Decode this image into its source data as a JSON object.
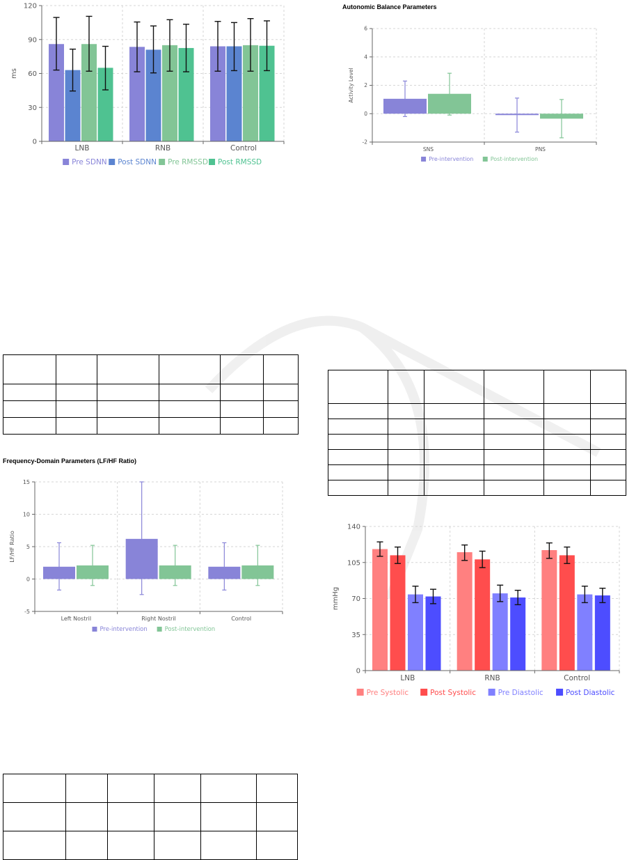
{
  "charts": {
    "hrv": {
      "ylabel": "ms",
      "yticks": [
        0,
        30,
        60,
        90,
        120
      ],
      "ylim": [
        0,
        120
      ],
      "categories": [
        "LNB",
        "RNB",
        "Control"
      ],
      "legend": [
        "Pre SDNN",
        "Post SDNN",
        "Pre RMSSD",
        "Post RMSSD"
      ]
    },
    "autonomic": {
      "title": "Autonomic Balance Parameters",
      "ylabel": "Activity Level",
      "yticks": [
        -2,
        0,
        2,
        4,
        6
      ],
      "ylim": [
        -2,
        6
      ],
      "categories": [
        "SNS",
        "PNS"
      ],
      "legend": [
        "Pre-intervention",
        "Post-intervention"
      ]
    },
    "lfhf": {
      "title": "Frequency-Domain Parameters (LF/HF Ratio)",
      "ylabel": "LF/HF Ratio",
      "yticks": [
        -5,
        0,
        5,
        10,
        15
      ],
      "ylim": [
        -5,
        15
      ],
      "categories": [
        "Left Nostril",
        "Right Nostril",
        "Control"
      ],
      "legend": [
        "Pre-intervention",
        "Post-intervention"
      ]
    },
    "bp": {
      "ylabel": "mmHg",
      "yticks": [
        0,
        35,
        70,
        105,
        140
      ],
      "ylim": [
        0,
        140
      ],
      "categories": [
        "LNB",
        "RNB",
        "Control"
      ],
      "legend": [
        "Pre Systolic",
        "Post Systolic",
        "Pre Diastolic",
        "Post Diastolic"
      ]
    }
  },
  "chart_data": [
    {
      "type": "bar",
      "ylabel": "ms",
      "ylim": [
        0,
        120
      ],
      "grid": true,
      "legend_position": "bottom",
      "categories": [
        "LNB",
        "RNB",
        "Control"
      ],
      "series": [
        {
          "name": "Pre SDNN",
          "color": "#8884d8",
          "values": [
            86,
            83.5,
            84
          ],
          "error_low": [
            63,
            61.5,
            62
          ],
          "error_high": [
            109.5,
            105.5,
            106
          ]
        },
        {
          "name": "Post SDNN",
          "color": "#5b84d0",
          "values": [
            63,
            81,
            84
          ],
          "error_low": [
            44.5,
            60.5,
            62.5
          ],
          "error_high": [
            81.5,
            102,
            105
          ]
        },
        {
          "name": "Pre RMSSD",
          "color": "#82c596",
          "values": [
            86,
            85,
            85
          ],
          "error_low": [
            62,
            62,
            62
          ],
          "error_high": [
            110.5,
            107.5,
            108.5
          ]
        },
        {
          "name": "Post RMSSD",
          "color": "#4fc291",
          "values": [
            65,
            82.5,
            84.5
          ],
          "error_low": [
            45.5,
            61.5,
            62.5
          ],
          "error_high": [
            84,
            103.5,
            106.5
          ]
        }
      ]
    },
    {
      "type": "bar",
      "title": "Autonomic Balance Parameters",
      "ylabel": "Activity Level",
      "ylim": [
        -2,
        6
      ],
      "grid": true,
      "legend_position": "bottom",
      "categories": [
        "SNS",
        "PNS"
      ],
      "series": [
        {
          "name": "Pre-intervention",
          "color": "#8884d8",
          "values": [
            1.05,
            -0.1
          ],
          "error_low": [
            -0.2,
            -1.3
          ],
          "error_high": [
            2.3,
            1.1
          ]
        },
        {
          "name": "Post-intervention",
          "color": "#82c596",
          "values": [
            1.4,
            -0.35
          ],
          "error_low": [
            -0.1,
            -1.7
          ],
          "error_high": [
            2.85,
            1.0
          ]
        }
      ]
    },
    {
      "type": "bar",
      "title": "Frequency-Domain Parameters (LF/HF Ratio)",
      "ylabel": "LF/HF Ratio",
      "ylim": [
        -5,
        15
      ],
      "grid": true,
      "legend_position": "bottom",
      "categories": [
        "Left Nostril",
        "Right Nostril",
        "Control"
      ],
      "series": [
        {
          "name": "Pre-intervention",
          "color": "#8884d8",
          "values": [
            1.9,
            6.2,
            1.9
          ],
          "error_low": [
            -1.7,
            -2.4,
            -1.7
          ],
          "error_high": [
            5.6,
            15,
            5.6
          ]
        },
        {
          "name": "Post-intervention",
          "color": "#82c596",
          "values": [
            2.1,
            2.1,
            2.1
          ],
          "error_low": [
            -1.0,
            -1.0,
            -1.0
          ],
          "error_high": [
            5.2,
            5.2,
            5.2
          ]
        }
      ]
    },
    {
      "type": "bar",
      "ylabel": "mmHg",
      "ylim": [
        0,
        140
      ],
      "grid": true,
      "legend_position": "bottom",
      "categories": [
        "LNB",
        "RNB",
        "Control"
      ],
      "series": [
        {
          "name": "Pre Systolic",
          "color": "#ff8080",
          "values": [
            118,
            115,
            117
          ],
          "error_low": [
            111,
            107,
            109
          ],
          "error_high": [
            125,
            122,
            124
          ]
        },
        {
          "name": "Post Systolic",
          "color": "#ff4d4d",
          "values": [
            112,
            108,
            112
          ],
          "error_low": [
            104,
            100,
            104
          ],
          "error_high": [
            120,
            116,
            120
          ]
        },
        {
          "name": "Pre Diastolic",
          "color": "#8080ff",
          "values": [
            74,
            75,
            74
          ],
          "error_low": [
            66,
            67,
            66
          ],
          "error_high": [
            82,
            83,
            82
          ]
        },
        {
          "name": "Post Diastolic",
          "color": "#4d4dff",
          "values": [
            72,
            71,
            73
          ],
          "error_low": [
            65,
            64,
            66
          ],
          "error_high": [
            79,
            78,
            80
          ]
        }
      ]
    }
  ],
  "tables": [
    {
      "name": "table-1"
    },
    {
      "name": "table-2"
    },
    {
      "name": "table-3"
    }
  ]
}
